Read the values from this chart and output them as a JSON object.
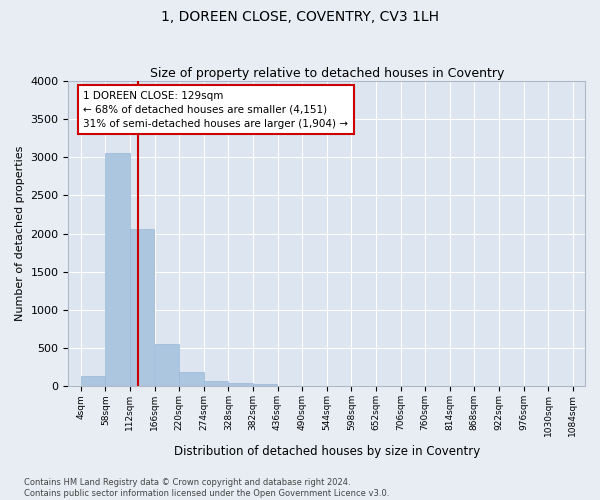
{
  "title": "1, DOREEN CLOSE, COVENTRY, CV3 1LH",
  "subtitle": "Size of property relative to detached houses in Coventry",
  "xlabel": "Distribution of detached houses by size in Coventry",
  "ylabel": "Number of detached properties",
  "footer_line1": "Contains HM Land Registry data © Crown copyright and database right 2024.",
  "footer_line2": "Contains public sector information licensed under the Open Government Licence v3.0.",
  "bin_edges": [
    4,
    58,
    112,
    166,
    220,
    274,
    328,
    382,
    436,
    490,
    544,
    598,
    652,
    706,
    760,
    814,
    868,
    922,
    976,
    1030,
    1084
  ],
  "bin_counts": [
    130,
    3060,
    2060,
    560,
    190,
    70,
    50,
    35,
    0,
    0,
    0,
    0,
    0,
    0,
    0,
    0,
    0,
    0,
    0,
    0
  ],
  "bar_color": "#adc6e0",
  "bar_edge_color": "#9ab8d8",
  "vline_x": 129,
  "vline_color": "#cc0000",
  "annotation_text": "1 DOREEN CLOSE: 129sqm\n← 68% of detached houses are smaller (4,151)\n31% of semi-detached houses are larger (1,904) →",
  "annotation_box_facecolor": "#ffffff",
  "annotation_box_edgecolor": "#cc0000",
  "annotation_fontsize": 7.5,
  "ylim": [
    0,
    4000
  ],
  "yticks": [
    0,
    500,
    1000,
    1500,
    2000,
    2500,
    3000,
    3500,
    4000
  ],
  "bg_color": "#e8edf4",
  "plot_bg_color": "#dce5f0",
  "grid_color": "#ffffff",
  "title_fontsize": 10,
  "subtitle_fontsize": 9,
  "footer_fontsize": 6.0
}
